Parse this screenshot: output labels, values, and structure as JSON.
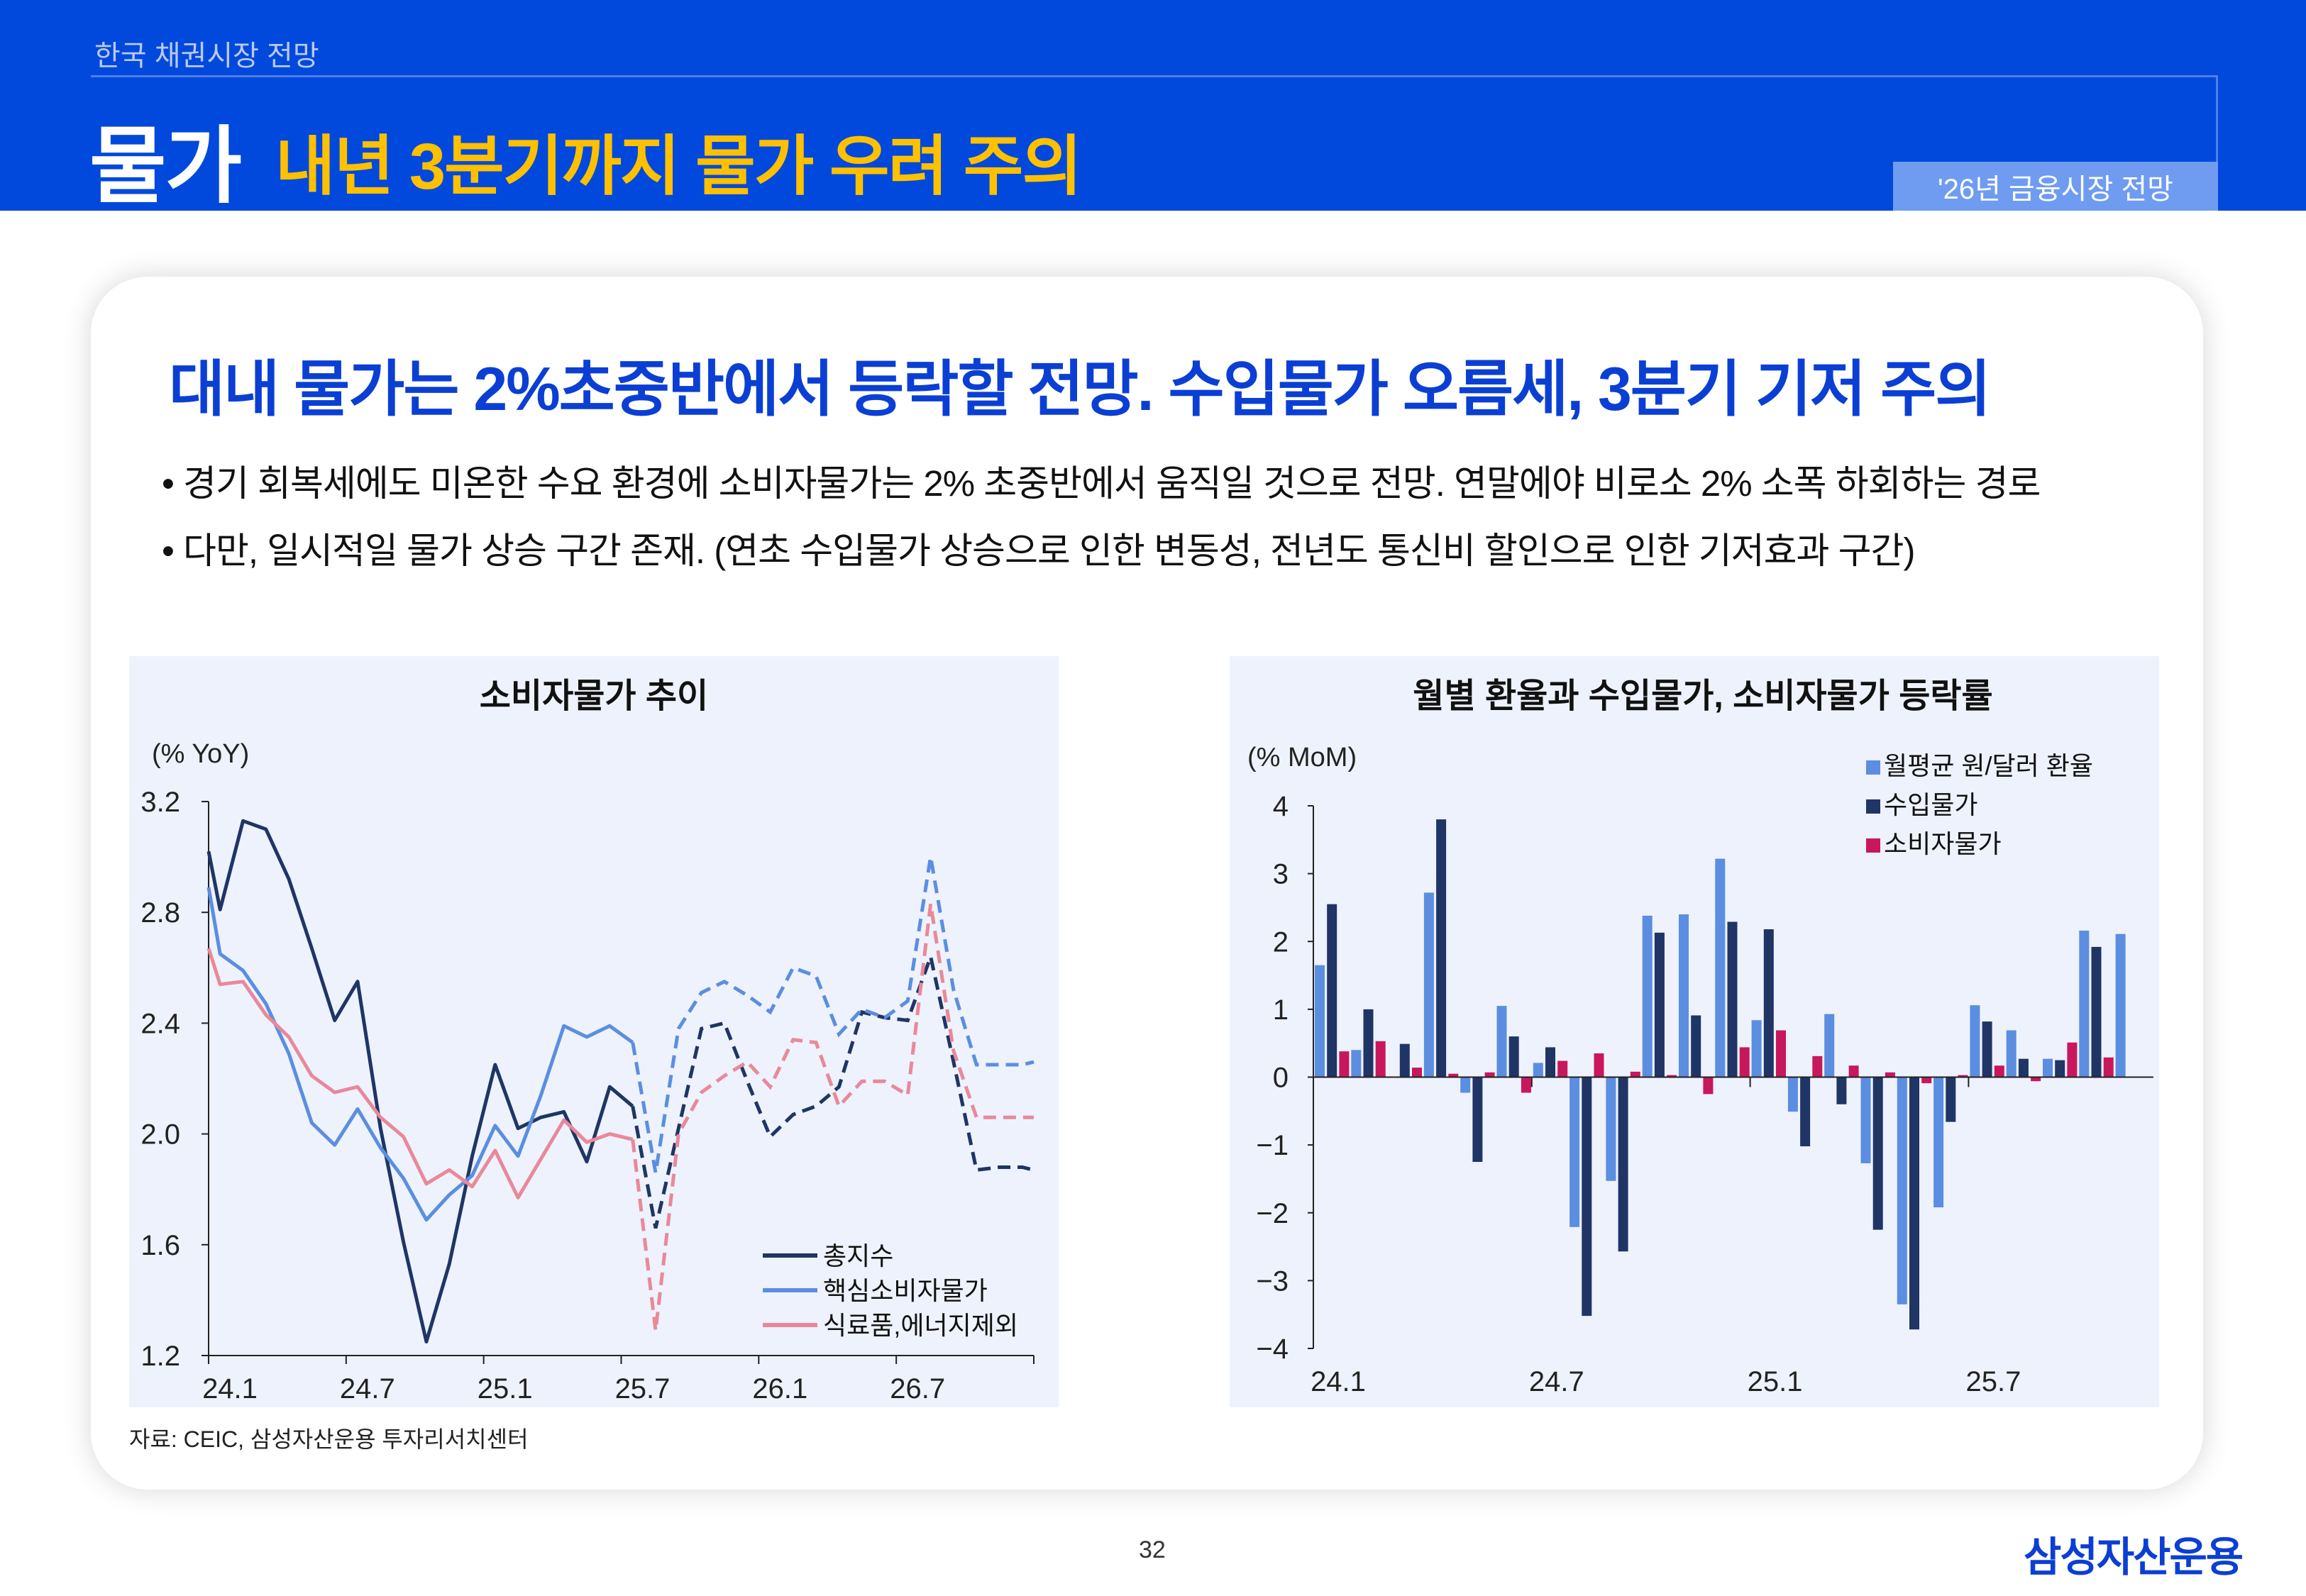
{
  "header": {
    "section": "한국 채권시장 전망",
    "title_main": "물가",
    "title_sub": "내년 3분기까지 물가 우려 주의",
    "tag": "'26년 금융시장 전망"
  },
  "card": {
    "heading": "대내 물가는 2%초중반에서 등락할 전망. 수입물가 오름세, 3분기 기저 주의",
    "bullets": [
      "• 경기 회복세에도 미온한 수요 환경에 소비자물가는 2% 초중반에서 움직일 것으로 전망. 연말에야 비로소 2% 소폭 하회하는 경로",
      "• 다만, 일시적일 물가 상승 구간 존재. (연초 수입물가 상승으로 인한 변동성, 전년도 통신비 할인으로 인한 기저효과 구간)"
    ]
  },
  "chart_data": [
    {
      "type": "line",
      "title": "소비자물가 추이",
      "ylabel": "(% YoY)",
      "xlabel": "",
      "ylim": [
        1.2,
        3.2
      ],
      "yticks": [
        "1.2",
        "1.6",
        "2.0",
        "2.4",
        "2.8",
        "3.2"
      ],
      "xticks": [
        "24.1",
        "24.7",
        "25.1",
        "25.7",
        "26.1",
        "26.7"
      ],
      "x_unit": "months since 24.1",
      "xlim": [
        0,
        36
      ],
      "forecast_from": 18.5,
      "x": [
        0,
        0.5,
        1.5,
        2.5,
        3.5,
        4.5,
        5.5,
        6.5,
        7.5,
        8.5,
        9.5,
        10.5,
        11.5,
        12.5,
        13.5,
        14.5,
        15.5,
        16.5,
        17.5,
        18.5,
        19.5,
        20.5,
        21.5,
        22.5,
        23.5,
        24.5,
        25.5,
        26.5,
        27.5,
        28.5,
        29.5,
        30.5,
        31.5,
        32.5,
        33.5,
        34.5,
        35.5,
        36
      ],
      "series": [
        {
          "name": "총지수",
          "color": "#1f3566",
          "values": [
            3.02,
            2.81,
            3.13,
            3.1,
            2.92,
            2.67,
            2.41,
            2.55,
            2.02,
            1.61,
            1.25,
            1.53,
            1.92,
            2.25,
            2.02,
            2.06,
            2.08,
            1.9,
            2.17,
            2.1,
            1.66,
            2.02,
            2.38,
            2.4,
            2.19,
            1.99,
            2.07,
            2.1,
            2.17,
            2.44,
            2.42,
            2.41,
            2.64,
            2.26,
            1.87,
            1.88,
            1.88,
            1.87
          ]
        },
        {
          "name": "핵심소비자물가",
          "color": "#5b8ee0",
          "values": [
            2.89,
            2.65,
            2.59,
            2.47,
            2.29,
            2.04,
            1.96,
            2.09,
            1.95,
            1.84,
            1.69,
            1.78,
            1.85,
            2.03,
            1.92,
            2.14,
            2.39,
            2.35,
            2.39,
            2.33,
            1.86,
            2.38,
            2.51,
            2.55,
            2.5,
            2.44,
            2.6,
            2.57,
            2.36,
            2.45,
            2.42,
            2.48,
            3.0,
            2.52,
            2.25,
            2.25,
            2.25,
            2.26
          ]
        },
        {
          "name": "식료품,에너지제외",
          "color": "#e8899a",
          "values": [
            2.67,
            2.54,
            2.55,
            2.43,
            2.35,
            2.21,
            2.15,
            2.17,
            2.06,
            1.99,
            1.82,
            1.87,
            1.81,
            1.94,
            1.77,
            1.91,
            2.05,
            1.97,
            2.0,
            1.98,
            1.29,
            2.0,
            2.15,
            2.21,
            2.26,
            2.17,
            2.34,
            2.33,
            2.1,
            2.19,
            2.19,
            2.14,
            2.83,
            2.3,
            2.06,
            2.06,
            2.06,
            2.06
          ]
        }
      ],
      "legend": "bottom-right"
    },
    {
      "type": "bar",
      "title": "월별 환율과 수입물가, 소비자물가 등락률",
      "ylabel": "(% MoM)",
      "xlabel": "",
      "ylim": [
        -4,
        4
      ],
      "yticks": [
        "-4",
        "-3",
        "-2",
        "-1",
        "0",
        "1",
        "2",
        "3",
        "4"
      ],
      "xticks": [
        "24.1",
        "24.7",
        "25.1",
        "25.7"
      ],
      "categories": [
        "24.1",
        "24.2",
        "24.3",
        "24.4",
        "24.5",
        "24.6",
        "24.7",
        "24.8",
        "24.9",
        "24.10",
        "24.11",
        "24.12",
        "25.1",
        "25.2",
        "25.3",
        "25.4",
        "25.5",
        "25.6",
        "25.7",
        "25.8",
        "25.9",
        "25.10",
        "25.11"
      ],
      "series": [
        {
          "name": "월평균 원/달러 환율",
          "color": "#5b8ee0",
          "values": [
            1.65,
            0.4,
            0.01,
            2.72,
            -0.23,
            1.05,
            0.21,
            -2.21,
            -1.53,
            2.38,
            2.4,
            3.22,
            0.84,
            -0.51,
            0.93,
            -1.27,
            -3.35,
            -1.92,
            1.06,
            0.69,
            0.27,
            2.16,
            2.11
          ]
        },
        {
          "name": "수입물가",
          "color": "#1f3566",
          "values": [
            2.55,
            1.0,
            0.49,
            3.8,
            -1.25,
            0.6,
            0.44,
            -3.52,
            -2.57,
            2.13,
            0.91,
            2.29,
            2.18,
            -1.02,
            -0.4,
            -2.25,
            -3.72,
            -0.66,
            0.82,
            0.27,
            0.25,
            1.92,
            null
          ]
        },
        {
          "name": "소비자물가",
          "color": "#c8175d",
          "values": [
            0.38,
            0.53,
            0.14,
            0.05,
            0.07,
            -0.23,
            0.24,
            0.35,
            0.08,
            0.03,
            -0.25,
            0.44,
            0.69,
            0.31,
            0.17,
            0.07,
            -0.09,
            0.03,
            0.17,
            -0.06,
            0.51,
            0.29,
            null
          ]
        }
      ],
      "legend": "top-right"
    }
  ],
  "source": "자료: CEIC, 삼성자산운용 투자리서치센터",
  "page_number": "32",
  "logo": "삼성자산운용"
}
